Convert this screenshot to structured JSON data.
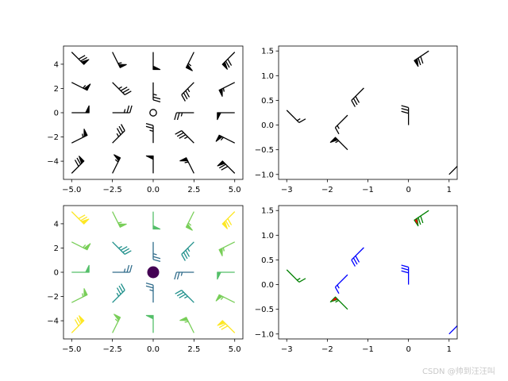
{
  "watermark": "CSDN @帅到汪汪叫",
  "chart_data": [
    {
      "type": "scatter",
      "subtype": "wind-barbs",
      "title": "",
      "xlabel": "",
      "ylabel": "",
      "xlim": [
        -5.5,
        5.5
      ],
      "ylim": [
        -5.5,
        5.5
      ],
      "xticks": [
        "−5.0",
        "−2.5",
        "0.0",
        "2.5",
        "5.0"
      ],
      "yticks": [
        "−4",
        "−2",
        "0",
        "2",
        "4"
      ],
      "grid": false,
      "color": "#000000",
      "grid_x": [
        -5,
        -2.5,
        0,
        2.5,
        5
      ],
      "grid_y": [
        -5,
        -2.5,
        0,
        2.5,
        5
      ],
      "u_equals": "10*x",
      "v_equals": "10*y"
    },
    {
      "type": "scatter",
      "subtype": "wind-barbs",
      "title": "",
      "xlabel": "",
      "ylabel": "",
      "xlim": [
        -3.2,
        1.2
      ],
      "ylim": [
        -1.1,
        1.6
      ],
      "xticks": [
        "−3",
        "−2",
        "−1",
        "0",
        "1"
      ],
      "yticks": [
        "−1.0",
        "−0.5",
        "0.0",
        "0.5",
        "1.0",
        "1.5"
      ],
      "grid": false,
      "color": "#000000",
      "points": [
        {
          "x": -3.0,
          "y": 0.3,
          "u": -10,
          "v": 10
        },
        {
          "x": -1.5,
          "y": 0.2,
          "u": 10,
          "v": 10
        },
        {
          "x": -1.1,
          "y": 0.75,
          "u": 20,
          "v": 20
        },
        {
          "x": -1.5,
          "y": -0.5,
          "u": 40,
          "v": -40
        },
        {
          "x": 0.0,
          "y": 0.0,
          "u": 0,
          "v": -30
        },
        {
          "x": 0.5,
          "y": 1.5,
          "u": 60,
          "v": 40
        },
        {
          "x": 1.0,
          "y": -1.0,
          "u": -10,
          "v": -10
        }
      ]
    },
    {
      "type": "scatter",
      "subtype": "wind-barbs",
      "title": "",
      "xlabel": "",
      "ylabel": "",
      "xlim": [
        -5.5,
        5.5
      ],
      "ylim": [
        -5.5,
        5.5
      ],
      "xticks": [
        "−5.0",
        "−2.5",
        "0.0",
        "2.5",
        "5.0"
      ],
      "yticks": [
        "−4",
        "−2",
        "0",
        "2",
        "4"
      ],
      "grid": false,
      "colormap": "viridis",
      "grid_x": [
        -5,
        -2.5,
        0,
        2.5,
        5
      ],
      "grid_y": [
        -5,
        -2.5,
        0,
        2.5,
        5
      ],
      "u_equals": "10*x",
      "v_equals": "10*y",
      "color_by": "sqrt(u^2+v^2)"
    },
    {
      "type": "scatter",
      "subtype": "wind-barbs",
      "title": "",
      "xlabel": "",
      "ylabel": "",
      "xlim": [
        -3.2,
        1.2
      ],
      "ylim": [
        -1.1,
        1.6
      ],
      "xticks": [
        "−3",
        "−2",
        "−1",
        "0",
        "1"
      ],
      "yticks": [
        "−1.0",
        "−0.5",
        "0.0",
        "0.5",
        "1.0",
        "1.5"
      ],
      "grid": false,
      "flagcolor": "#ff0000",
      "barbcolor_cycle": [
        "#0000ff",
        "#008000"
      ],
      "points": [
        {
          "x": -3.0,
          "y": 0.3,
          "u": -10,
          "v": 10,
          "color": "#008000"
        },
        {
          "x": -1.5,
          "y": 0.2,
          "u": 10,
          "v": 10,
          "color": "#0000ff"
        },
        {
          "x": -1.1,
          "y": 0.75,
          "u": 20,
          "v": 20,
          "color": "#0000ff"
        },
        {
          "x": -1.5,
          "y": -0.5,
          "u": 40,
          "v": -40,
          "color": "#008000"
        },
        {
          "x": 0.0,
          "y": 0.0,
          "u": 0,
          "v": -30,
          "color": "#0000ff"
        },
        {
          "x": 0.5,
          "y": 1.5,
          "u": 60,
          "v": 40,
          "color": "#008000"
        },
        {
          "x": 1.0,
          "y": -1.0,
          "u": -10,
          "v": -10,
          "color": "#0000ff"
        }
      ]
    }
  ]
}
